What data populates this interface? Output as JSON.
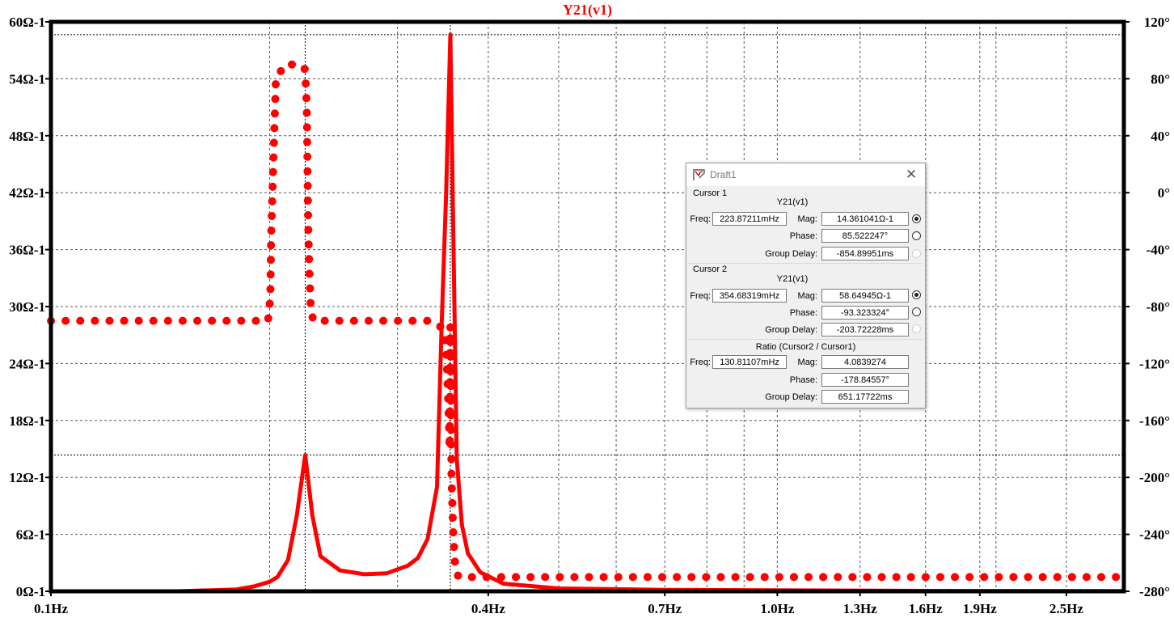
{
  "chart_data": {
    "type": "line",
    "title": "Y21(v1)",
    "x_scale": "log",
    "xlim": [
      0.1,
      3.0
    ],
    "x_ticks": [
      {
        "value": 0.1,
        "label": "0.1Hz"
      },
      {
        "value": 0.4,
        "label": "0.4Hz"
      },
      {
        "value": 0.7,
        "label": "0.7Hz"
      },
      {
        "value": 1.0,
        "label": "1.0Hz"
      },
      {
        "value": 1.3,
        "label": "1.3Hz"
      },
      {
        "value": 1.6,
        "label": "1.6Hz"
      },
      {
        "value": 1.9,
        "label": "1.9Hz"
      },
      {
        "value": 2.5,
        "label": "2.5Hz"
      }
    ],
    "x_minor_grid": [
      0.2,
      0.3,
      0.5,
      0.6,
      0.8,
      0.9,
      2.0,
      3.0
    ],
    "y_left": {
      "lim": [
        0,
        60
      ],
      "ticks": [
        {
          "value": 0,
          "label": "0Ω-1"
        },
        {
          "value": 6,
          "label": "6Ω-1"
        },
        {
          "value": 12,
          "label": "12Ω-1"
        },
        {
          "value": 18,
          "label": "18Ω-1"
        },
        {
          "value": 24,
          "label": "24Ω-1"
        },
        {
          "value": 30,
          "label": "30Ω-1"
        },
        {
          "value": 36,
          "label": "36Ω-1"
        },
        {
          "value": 42,
          "label": "42Ω-1"
        },
        {
          "value": 48,
          "label": "48Ω-1"
        },
        {
          "value": 54,
          "label": "54Ω-1"
        },
        {
          "value": 60,
          "label": "60Ω-1"
        }
      ]
    },
    "y_right": {
      "lim": [
        -280,
        120
      ],
      "ticks": [
        {
          "value": 120,
          "label": "120°"
        },
        {
          "value": 80,
          "label": "80°"
        },
        {
          "value": 40,
          "label": "40°"
        },
        {
          "value": 0,
          "label": "0°"
        },
        {
          "value": -40,
          "label": "-40°"
        },
        {
          "value": -80,
          "label": "-80°"
        },
        {
          "value": -120,
          "label": "-120°"
        },
        {
          "value": -160,
          "label": "-160°"
        },
        {
          "value": -200,
          "label": "-200°"
        },
        {
          "value": -240,
          "label": "-240°"
        },
        {
          "value": -280,
          "label": "-280°"
        }
      ]
    },
    "grid": true,
    "cursors": [
      {
        "x": 0.22387,
        "y_left": 14.36
      },
      {
        "x": 0.35468,
        "y_left": 58.65
      }
    ],
    "series": [
      {
        "axis": "left",
        "style": "solid",
        "color": "#ff0000",
        "x": [
          0.1,
          0.15,
          0.18,
          0.19,
          0.2,
          0.205,
          0.212,
          0.218,
          0.2239,
          0.229,
          0.235,
          0.25,
          0.27,
          0.29,
          0.31,
          0.32,
          0.33,
          0.34,
          0.345,
          0.35,
          0.3547,
          0.358,
          0.362,
          0.368,
          0.375,
          0.39,
          0.42,
          0.5,
          0.7,
          1.0,
          1.5,
          2.0,
          3.0
        ],
        "values": [
          0,
          0,
          0.2,
          0.5,
          1.0,
          1.5,
          3.3,
          8.0,
          14.36,
          8.0,
          3.7,
          2.2,
          1.8,
          1.9,
          2.7,
          3.5,
          5.5,
          11.0,
          28.0,
          42.0,
          58.65,
          38.0,
          14.0,
          7.0,
          4.0,
          2.0,
          0.8,
          0.3,
          0.15,
          0.1,
          0.05,
          0.03,
          0.02
        ]
      },
      {
        "axis": "right",
        "style": "dotted",
        "color": "#ff0000",
        "x": [
          0.1,
          0.199,
          0.1995,
          0.2,
          0.2005,
          0.201,
          0.204,
          0.21,
          0.22,
          0.223,
          0.2239,
          0.225,
          0.2255,
          0.226,
          0.227,
          0.228,
          0.23,
          0.25,
          0.28,
          0.3,
          0.33,
          0.34,
          0.345,
          0.348,
          0.35,
          0.352,
          0.354,
          0.3547,
          0.356,
          0.358,
          0.36,
          0.362,
          0.365,
          0.4,
          0.6,
          1.0,
          2.0,
          3.0
        ],
        "values": [
          -90,
          -90,
          -84,
          -80,
          -70,
          -30,
          80,
          90,
          90,
          88,
          86,
          60,
          20,
          -20,
          -60,
          -84,
          -90,
          -90,
          -90,
          -90,
          -90,
          -92,
          -95,
          -100,
          -110,
          -140,
          -180,
          -93.3,
          -200,
          -240,
          -260,
          -268,
          -270,
          -270,
          -270,
          -270,
          -270,
          -270
        ]
      }
    ]
  },
  "dialog": {
    "title": "Draft1",
    "cursor1": {
      "section": "Cursor 1",
      "subtitle": "Y21(v1)",
      "freq_label": "Freq:",
      "freq": "223.87211mHz",
      "mag_label": "Mag:",
      "mag": "14.361041Ω-1",
      "phase_label": "Phase:",
      "phase": "85.522247°",
      "gd_label": "Group Delay:",
      "gd": "-854.89951ms"
    },
    "cursor2": {
      "section": "Cursor 2",
      "subtitle": "Y21(v1)",
      "freq_label": "Freq:",
      "freq": "354.68319mHz",
      "mag_label": "Mag:",
      "mag": "58.64945Ω-1",
      "phase_label": "Phase:",
      "phase": "-93.323324°",
      "gd_label": "Group Delay:",
      "gd": "-203.72228ms"
    },
    "ratio": {
      "section": "Ratio (Cursor2 / Cursor1)",
      "freq_label": "Freq:",
      "freq": "130.81107mHz",
      "mag_label": "Mag:",
      "mag": "4.0839274",
      "phase_label": "Phase:",
      "phase": "-178.84557°",
      "gd_label": "Group Delay:",
      "gd": "651.17722ms"
    }
  }
}
